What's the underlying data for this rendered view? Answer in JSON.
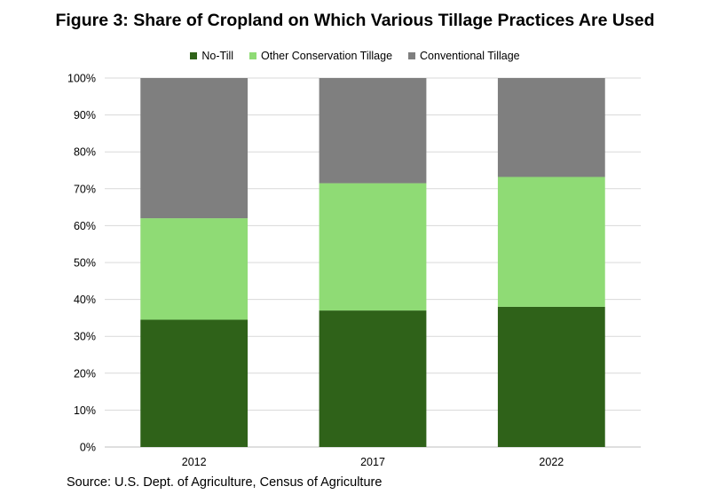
{
  "chart_data": {
    "type": "bar",
    "stacked": true,
    "title": "Figure 3: Share of Cropland on Which Various Tillage Practices Are Used",
    "categories": [
      "2012",
      "2017",
      "2022"
    ],
    "series": [
      {
        "name": "No-Till",
        "color": "#2f6219",
        "values": [
          34.5,
          37.0,
          38.0
        ]
      },
      {
        "name": "Other Conservation Tillage",
        "color": "#8fdb75",
        "values": [
          27.5,
          34.5,
          35.2
        ]
      },
      {
        "name": "Conventional Tillage",
        "color": "#7f7f7f",
        "values": [
          38.0,
          28.5,
          26.8
        ]
      }
    ],
    "ylim": [
      0,
      100
    ],
    "yticks": [
      "0%",
      "10%",
      "20%",
      "30%",
      "40%",
      "50%",
      "60%",
      "70%",
      "80%",
      "90%",
      "100%"
    ],
    "grid": true,
    "legend_position": "top",
    "source": "Source: U.S. Dept. of Agriculture, Census of Agriculture"
  }
}
